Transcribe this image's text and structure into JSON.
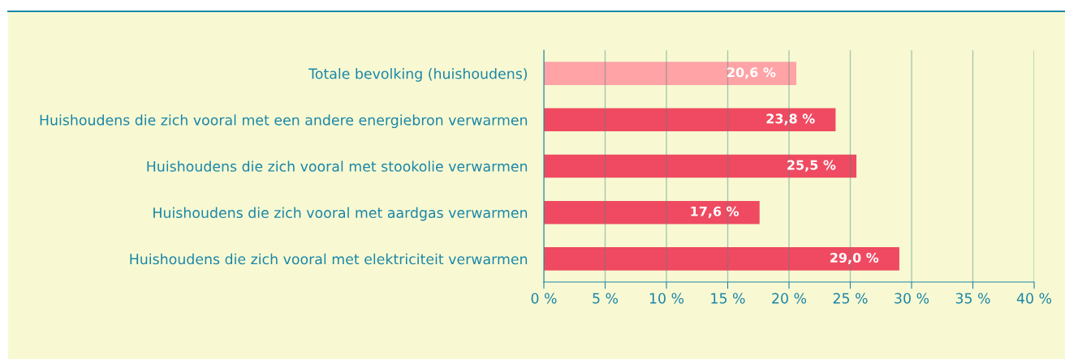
{
  "chart_data": {
    "type": "bar",
    "orientation": "horizontal",
    "categories": [
      "Totale bevolking (huishoudens)",
      "Huishoudens die zich vooral met een andere energiebron verwarmen",
      "Huishoudens die zich vooral met stookolie verwarmen",
      "Huishoudens die zich vooral met aardgas verwarmen",
      "Huishoudens die zich vooral met elektriciteit verwarmen"
    ],
    "values": [
      20.6,
      23.8,
      25.5,
      17.6,
      29.0
    ],
    "colors": [
      "#ffa3a6",
      "#ef4a61",
      "#ef4a61",
      "#ef4a61",
      "#ef4a61"
    ],
    "value_labels": [
      "20,6 %",
      "23,8 %",
      "25,5 %",
      "17,6 %",
      "29,0 %"
    ],
    "xlim": [
      0,
      40
    ],
    "xticks": [
      {
        "value": 0,
        "label": "0 %"
      },
      {
        "value": 5,
        "label": "5 %"
      },
      {
        "value": 10,
        "label": "10 %"
      },
      {
        "value": 15,
        "label": "15 %"
      },
      {
        "value": 20,
        "label": "20 %"
      },
      {
        "value": 25,
        "label": "25 %"
      },
      {
        "value": 30,
        "label": "30 %"
      },
      {
        "value": 35,
        "label": "35 %"
      },
      {
        "value": 40,
        "label": "40 %"
      }
    ],
    "grid": "x",
    "legend": false
  }
}
